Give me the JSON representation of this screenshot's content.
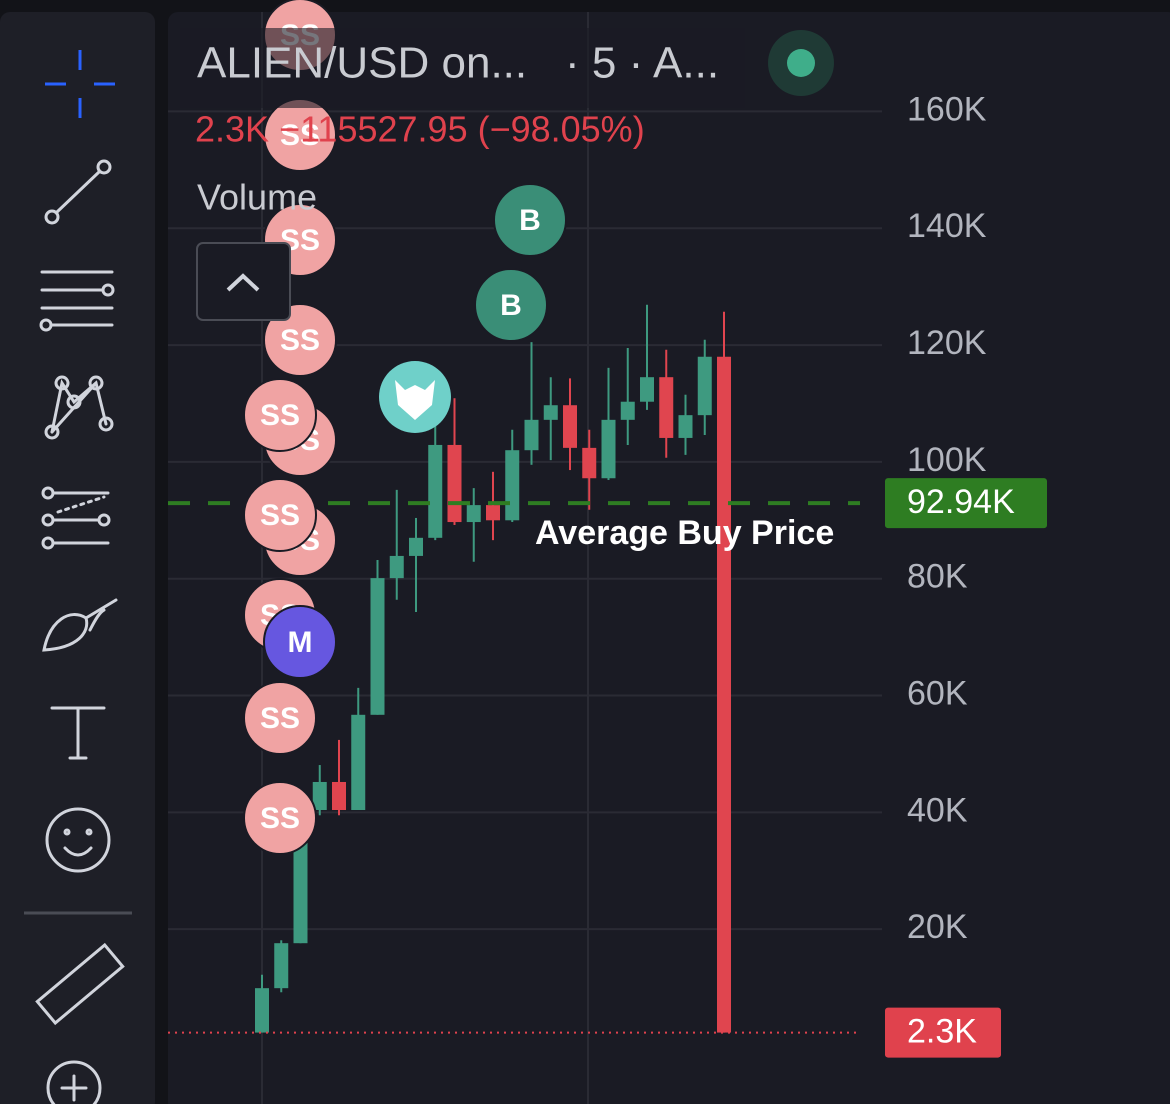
{
  "header": {
    "symbol": "ALIEN/USD on...",
    "interval": "· 5 · A...",
    "change": "2.3K −115527.95 (−98.05%)",
    "volume_label": "Volume"
  },
  "chart_data": {
    "type": "candlestick",
    "open": [
      2300,
      9900,
      17600,
      40400,
      45200,
      40400,
      56700,
      80100,
      83900,
      87000,
      102900,
      89700,
      92600,
      90000,
      102000,
      107200,
      109700,
      102400,
      97200,
      107200,
      110300,
      114500,
      104100,
      108000,
      118000
    ],
    "high": [
      12200,
      18100,
      38700,
      48100,
      52400,
      61300,
      83200,
      95200,
      90400,
      106300,
      110900,
      95500,
      98300,
      105500,
      120500,
      114500,
      114300,
      105500,
      116100,
      119500,
      126900,
      119200,
      111500,
      120900,
      125700
    ],
    "low": [
      2300,
      9200,
      17600,
      39500,
      39500,
      40400,
      56700,
      76400,
      74300,
      86600,
      89200,
      82900,
      86600,
      89700,
      99500,
      100300,
      98600,
      91800,
      96900,
      102900,
      108900,
      100700,
      101200,
      104600,
      2300
    ],
    "close": [
      9900,
      17600,
      37000,
      45200,
      40400,
      56700,
      80100,
      83900,
      87000,
      102900,
      89700,
      92600,
      90000,
      102000,
      107200,
      109700,
      102400,
      97200,
      107200,
      110300,
      114500,
      104100,
      108000,
      118000,
      2300
    ],
    "up_color": "#3e9a80",
    "down_color": "#e0454f",
    "ylim": [
      -9930,
      179075
    ],
    "yticks": [
      {
        "value": 20000,
        "label": "20K"
      },
      {
        "value": 40000,
        "label": "40K"
      },
      {
        "value": 60000,
        "label": "60K"
      },
      {
        "value": 80000,
        "label": "80K"
      },
      {
        "value": 100000,
        "label": "100K"
      },
      {
        "value": 120000,
        "label": "120K"
      },
      {
        "value": 140000,
        "label": "140K"
      },
      {
        "value": 160000,
        "label": "160K"
      }
    ],
    "grid": true,
    "reference_lines": [
      {
        "name": "Average Buy Price",
        "value": 92940,
        "label": "92.94K",
        "color": "#2e7d22"
      },
      {
        "value": 2300,
        "label": "2.3K",
        "color": "#e0424d"
      }
    ]
  },
  "trade_markers": [
    "SS",
    "SS",
    "SS",
    "SS",
    "SS",
    "SS",
    "SS",
    "SS",
    "SS",
    "M",
    "SS",
    "SS",
    "B",
    "B"
  ]
}
